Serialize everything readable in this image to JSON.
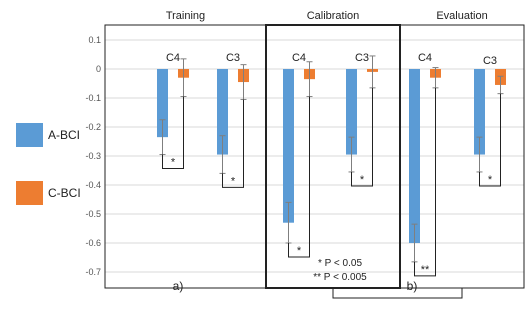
{
  "chart_data": {
    "type": "bar",
    "yticks": [
      "0.1",
      "0",
      "-0.1",
      "-0.2",
      "-0.3",
      "-0.4",
      "-0.5",
      "-0.6",
      "-0.7"
    ],
    "ylim": [
      -0.75,
      0.12
    ],
    "grid": true,
    "legend": {
      "position": "left",
      "entries": [
        {
          "label": "A-BCI",
          "color": "#5b9bd5"
        },
        {
          "label": "C-BCI",
          "color": "#ed7d31"
        }
      ]
    },
    "panels": [
      {
        "title": "Training",
        "groups": [
          {
            "label": "C4",
            "a": -0.235,
            "c": -0.03,
            "a_err": 0.06,
            "c_err": 0.065,
            "sig": "*"
          },
          {
            "label": "C3",
            "a": -0.295,
            "c": -0.045,
            "a_err": 0.065,
            "c_err": 0.06,
            "sig": "*"
          }
        ]
      },
      {
        "title": "Calibration",
        "groups": [
          {
            "label": "C4",
            "a": -0.53,
            "c": -0.035,
            "a_err": 0.07,
            "c_err": 0.06,
            "sig": "*"
          },
          {
            "label": "C3",
            "a": -0.295,
            "c": -0.01,
            "a_err": 0.06,
            "c_err": 0.055,
            "sig": "*"
          }
        ]
      },
      {
        "title": "Evaluation",
        "groups": [
          {
            "label": "C4",
            "a": -0.6,
            "c": -0.03,
            "a_err": 0.065,
            "c_err": 0.035,
            "sig": "**"
          },
          {
            "label": "C3",
            "a": -0.295,
            "c": -0.055,
            "a_err": 0.06,
            "c_err": 0.03,
            "sig": "*"
          }
        ]
      }
    ],
    "notes": [
      "* P < 0.05",
      "** P < 0.005"
    ],
    "sublabels": [
      "a)",
      "b)"
    ]
  }
}
